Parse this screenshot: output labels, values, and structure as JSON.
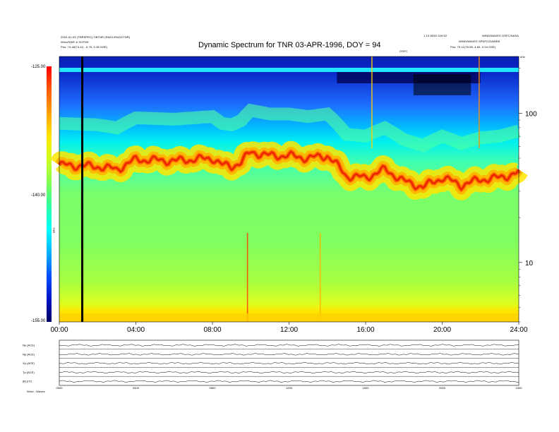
{
  "title": "Dynamic Spectrum for TNR 03-APR-1996, DOY = 94",
  "header_left": [
    "2002-01-03 (TNRSPEC) OBTNR (RAD1/RAD2/TNR)",
    "Wind/SWE & SCPGE",
    "Pos: 74.46(74.42, -0.75, 0.38 GSE)"
  ],
  "header_right": [
    "1.10 WDD DAY02",
    "WIND/WAVES GSFC/NASA",
    "WIND/WAVES SPDF/CDAWEB",
    "Pos: 79.11(78.98, 4.60, 0.04 GSE)"
  ],
  "header_center_small": "GSFC",
  "colorbar": {
    "label": "TNR",
    "ticks": [
      "-125.00",
      "-140.00",
      "-155.00"
    ],
    "colors": [
      "#ff0000",
      "#ff5a00",
      "#ffa000",
      "#ffe600",
      "#d0ff20",
      "#80ff50",
      "#30ffa0",
      "#00ffff",
      "#00b4ff",
      "#0050ff",
      "#0014c8",
      "#000064"
    ]
  },
  "chart_data": [
    {
      "type": "heatmap",
      "title": "Dynamic Spectrum for TNR 03-APR-1996, DOY = 94",
      "x_ticks": [
        "00:00",
        "04:00",
        "08:00",
        "12:00",
        "16:00",
        "20:00",
        "24:00"
      ],
      "x_range_hours": [
        0,
        24
      ],
      "y_scale": "log",
      "y_range": [
        4,
        240
      ],
      "y_ticks": [
        10,
        100
      ],
      "y_unit": "kHz",
      "color_range": [
        -155,
        -125
      ],
      "marker_line_hour": 1.2,
      "emission_band": {
        "description_hours": [
          0,
          2,
          3,
          4,
          6,
          8,
          8.5,
          9,
          9.5,
          10,
          11,
          12,
          13,
          14,
          15,
          16,
          17,
          18,
          19,
          20,
          21,
          22,
          23,
          24
        ],
        "center_khz": [
          45,
          44,
          42,
          49,
          48,
          50,
          45,
          44,
          47,
          55,
          52,
          52,
          50,
          52,
          38,
          37,
          42,
          35,
          32,
          37,
          33,
          36,
          37,
          40
        ]
      }
    },
    {
      "type": "line",
      "panels": [
        "Ne (ACE)",
        "Np (ACE)",
        "Vp (ACE)",
        "Tp (ACE)",
        "|B| (nT)"
      ],
      "x_ticks": [
        "0000",
        "0400",
        "0800",
        "1200",
        "1600",
        "2000",
        "2400"
      ]
    }
  ],
  "bottom_label": "Wind : Waves"
}
